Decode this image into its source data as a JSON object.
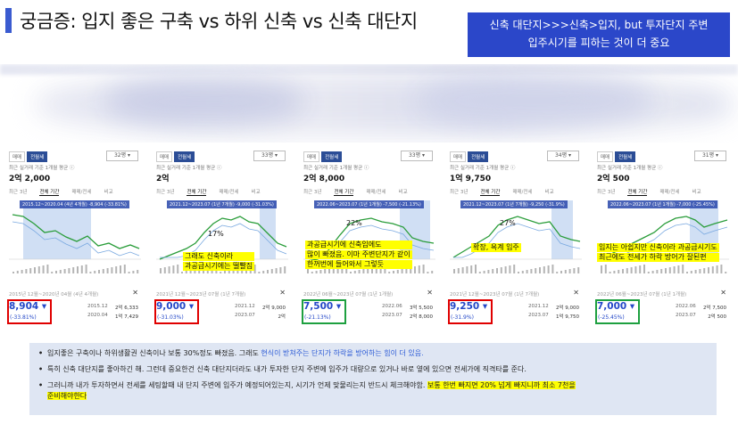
{
  "header": {
    "title": "궁금증: 입지 좋은 구축 vs 하위 신축 vs 신축 대단지",
    "callout_line1": "신축 대단지>>>신축>입지, but 투자단지 주변",
    "callout_line2": "입주시기를 피하는 것이 더 중요"
  },
  "colors": {
    "accent": "#2b47c9",
    "red_box": "#e00000",
    "green_box": "#1ea040",
    "highlight": "#ffff00",
    "price_blue": "#2448c8"
  },
  "panels": [
    {
      "tab_sale": "매매",
      "tab_rent": "전월세",
      "size": "32평 ▾",
      "note": "최근 실거래 기준 1개월 평균 ⓘ",
      "price": "2억 2,000",
      "subtabs": [
        "최근 3년",
        "전체 기간",
        "매매/전세",
        "비교"
      ],
      "range_label": "2015.12~2020.04 (4년 4개월) -8,904 (-33.81%)",
      "pct": "",
      "note_lines": [],
      "bottom_range": "2015년 12월~2020년 04월 (4년 4개월)",
      "big_value": "8,904 ▾",
      "big_change": "(-33.81%)",
      "box": "red",
      "cmp": [
        {
          "d": "2015.12",
          "v": "2억 6,333"
        },
        {
          "d": "2020.04",
          "v": "1억 7,429"
        }
      ]
    },
    {
      "tab_sale": "매매",
      "tab_rent": "전월세",
      "size": "33평 ▾",
      "note": "최근 실거래 기준 1개월 평균 ⓘ",
      "price": "2억",
      "subtabs": [
        "최근 3년",
        "전체 기간",
        "매매/전세",
        "비교"
      ],
      "range_label": "2021.12~2023.07 (1년 7개월) -9,000 (-31.03%)",
      "pct": "17%",
      "note_lines": [
        "그래도 신축이라",
        "과공급시기에는 떨빨짐"
      ],
      "bottom_range": "2021년 12월~2023년 07월 (1년 7개월)",
      "big_value": "9,000 ▾",
      "big_change": "(-31.03%)",
      "box": "red",
      "cmp": [
        {
          "d": "2021.12",
          "v": "2억 9,000"
        },
        {
          "d": "2023.07",
          "v": "2억"
        }
      ]
    },
    {
      "tab_sale": "매매",
      "tab_rent": "전월세",
      "size": "33평 ▾",
      "note": "최근 실거래 기준 1개월 평균 ⓘ",
      "price": "2억 8,000",
      "subtabs": [
        "최근 3년",
        "전체 기간",
        "매매/전세",
        "비교"
      ],
      "range_label": "2022.06~2023.07 (1년 1개월) -7,500 (-21.13%)",
      "pct": "22%",
      "note_lines": [
        "과공급시기에 신축임에도",
        "많이 빠졌음. 이마 주변단지가 같이",
        "한꺼번에 들어와서 그렇듯"
      ],
      "bottom_range": "2022년 06월~2023년 07월 (1년 1개월)",
      "big_value": "7,500 ▾",
      "big_change": "(-21.13%)",
      "box": "green",
      "cmp": [
        {
          "d": "2022.06",
          "v": "3억 5,500"
        },
        {
          "d": "2023.07",
          "v": "2억 8,000"
        }
      ]
    },
    {
      "tab_sale": "매매",
      "tab_rent": "전월세",
      "size": "34평 ▾",
      "note": "최근 실거래 기준 1개월 평균 ⓘ",
      "price": "1억 9,750",
      "subtabs": [
        "최근 3년",
        "전체 기간",
        "매매/전세",
        "비교"
      ],
      "range_label": "2021.12~2023.07 (1년 7개월) -9,250 (-31.9%)",
      "pct": "27%",
      "note_lines": [
        "확장, 욕계 입주"
      ],
      "bottom_range": "2021년 12월~2023년 07월 (1년 7개월)",
      "big_value": "9,250 ▾",
      "big_change": "(-31.9%)",
      "box": "red",
      "cmp": [
        {
          "d": "2021.12",
          "v": "2억 9,000"
        },
        {
          "d": "2023.07",
          "v": "1억 9,750"
        }
      ]
    },
    {
      "tab_sale": "매매",
      "tab_rent": "전월세",
      "size": "31평 ▾",
      "note": "최근 실거래 기준 1개월 평균 ⓘ",
      "price": "2억 500",
      "subtabs": [
        "최근 3년",
        "전체 기간",
        "매매/전세",
        "비교"
      ],
      "range_label": "2022.06~2023.07 (1년 1개월) -7,000 (-25.45%)",
      "pct": "",
      "note_lines": [
        "입지는 아쉽지만 신축이라 과공급시기도",
        "최근에도 전세가 하락 방어가 잘된편"
      ],
      "bottom_range": "2022년 06월~2023년 07월 (1년 1개월)",
      "big_value": "7,000 ▾",
      "big_change": "(-25.45%)",
      "box": "green",
      "cmp": [
        {
          "d": "2022.06",
          "v": "2억 7,500"
        },
        {
          "d": "2023.07",
          "v": "2억 500"
        }
      ]
    }
  ],
  "bullets": {
    "b1_a": "입지좋은 구축이나 하위생활권 신축이나 보통 30%정도 빠졌음. 그래도 ",
    "b1_b": "현식이 받쳐주는 단지가 하락을 방어하는 힘이 더 있음.",
    "b2": "특히 신축 대단지를 좋아하긴 해. 그런데 중요한건 신축 대단지더라도 내가 투자한 단지 주변에 입주가 대량으로 있거나 바로 옆에 있으면 전세가에 직격타를 준다.",
    "b3_a": "그러니까 내가 투자하면서 전세를 세팅할때 내 단지 주변에 입주가 예정되어있는지, 시기가 언제 맞물리는지 반드시 체크해야함. ",
    "b3_b": "보통 한번 빠지면 20% 넘게 빠지니까 최소 7천을",
    "b3_c": "준비해야한다"
  }
}
